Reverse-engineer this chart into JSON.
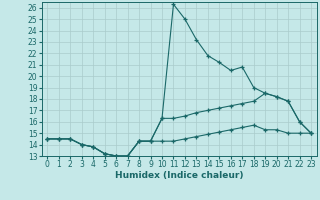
{
  "xlabel": "Humidex (Indice chaleur)",
  "background_color": "#c5e8e8",
  "grid_color": "#aacccc",
  "line_color": "#1a6868",
  "x_values": [
    0,
    1,
    2,
    3,
    4,
    5,
    6,
    7,
    8,
    9,
    10,
    11,
    12,
    13,
    14,
    15,
    16,
    17,
    18,
    19,
    20,
    21,
    22,
    23
  ],
  "y_top": [
    14.5,
    14.5,
    14.5,
    14.0,
    13.8,
    13.2,
    13.0,
    13.0,
    14.3,
    14.3,
    16.3,
    26.3,
    25.0,
    23.2,
    21.8,
    21.2,
    20.5,
    20.8,
    19.0,
    18.5,
    18.2,
    17.8,
    16.0,
    15.0
  ],
  "y_mid": [
    14.5,
    14.5,
    14.5,
    14.0,
    13.8,
    13.2,
    13.0,
    13.0,
    14.3,
    14.3,
    16.3,
    16.3,
    16.5,
    16.8,
    17.0,
    17.2,
    17.4,
    17.6,
    17.8,
    18.5,
    18.2,
    17.8,
    16.0,
    15.0
  ],
  "y_bot": [
    14.5,
    14.5,
    14.5,
    14.0,
    13.8,
    13.2,
    13.0,
    13.0,
    14.3,
    14.3,
    14.3,
    14.3,
    14.5,
    14.7,
    14.9,
    15.1,
    15.3,
    15.5,
    15.7,
    15.3,
    15.3,
    15.0,
    15.0,
    15.0
  ],
  "xlim": [
    -0.5,
    23.5
  ],
  "ylim": [
    13,
    26.5
  ],
  "yticks": [
    13,
    14,
    15,
    16,
    17,
    18,
    19,
    20,
    21,
    22,
    23,
    24,
    25,
    26
  ],
  "xticks": [
    0,
    1,
    2,
    3,
    4,
    5,
    6,
    7,
    8,
    9,
    10,
    11,
    12,
    13,
    14,
    15,
    16,
    17,
    18,
    19,
    20,
    21,
    22,
    23
  ],
  "tick_fontsize": 5.5,
  "label_fontsize": 6.5
}
